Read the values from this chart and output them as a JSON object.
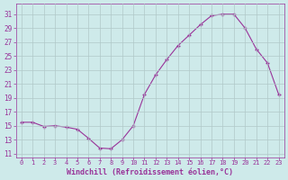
{
  "x": [
    0,
    1,
    2,
    3,
    4,
    5,
    6,
    7,
    8,
    9,
    10,
    11,
    12,
    13,
    14,
    15,
    16,
    17,
    18,
    19,
    20,
    21,
    22,
    23
  ],
  "y": [
    15.5,
    15.5,
    14.9,
    15.0,
    14.8,
    14.5,
    13.2,
    11.8,
    11.7,
    13.0,
    15.0,
    19.5,
    22.3,
    24.5,
    26.5,
    28.0,
    29.5,
    30.8,
    31.0,
    31.0,
    29.0,
    26.0,
    24.0,
    19.5
  ],
  "line_color": "#993399",
  "marker": "+",
  "bg_color": "#ceeaea",
  "grid_color": "#b0c8c8",
  "xlabel": "Windchill (Refroidissement éolien,°C)",
  "ylabel_ticks": [
    11,
    13,
    15,
    17,
    19,
    21,
    23,
    25,
    27,
    29,
    31
  ],
  "xtick_labels": [
    "0",
    "1",
    "2",
    "3",
    "4",
    "5",
    "6",
    "7",
    "8",
    "9",
    "10",
    "11",
    "12",
    "13",
    "14",
    "15",
    "16",
    "17",
    "18",
    "19",
    "20",
    "21",
    "22",
    "23"
  ],
  "ylim": [
    10.5,
    32.5
  ],
  "xlim": [
    -0.5,
    23.5
  ]
}
